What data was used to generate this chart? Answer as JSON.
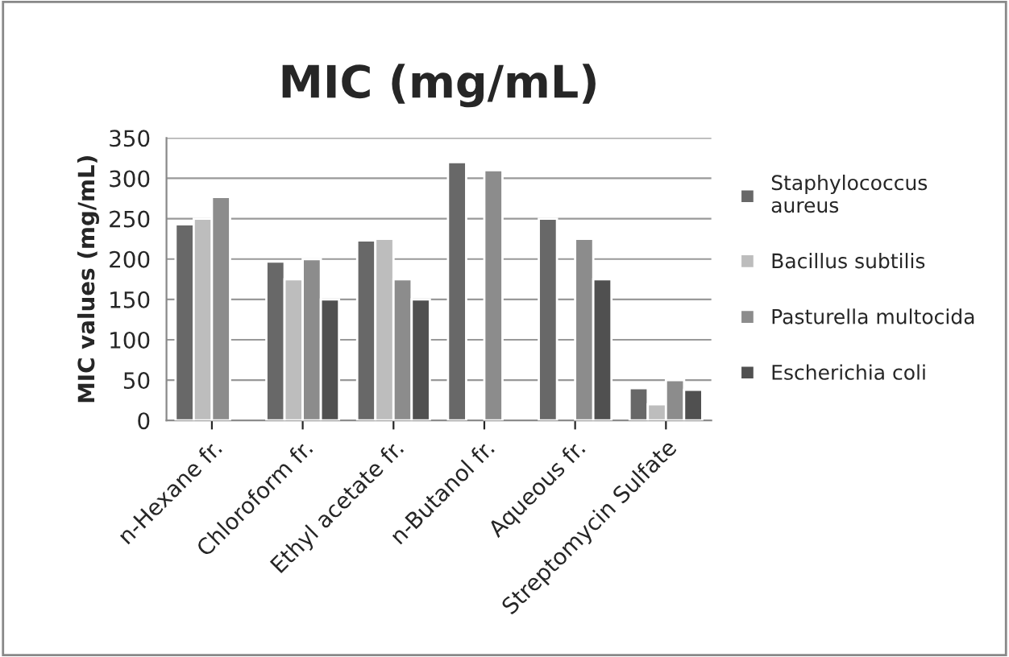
{
  "chart_data": {
    "type": "bar",
    "title": "MIC (mg/mL)",
    "ylabel": "MIC values (mg/mL)",
    "categories": [
      "n-Hexane fr.",
      "Chloroform fr.",
      "Ethyl acetate fr.",
      "n-Butanol fr.",
      "Aqueous fr.",
      "Streptomycin Sulfate"
    ],
    "series": [
      {
        "name": "Staphylococcus\naureus",
        "color": "#686868",
        "values": [
          243,
          197,
          223,
          320,
          250,
          40
        ]
      },
      {
        "name": "Bacillus subtilis",
        "color": "#bdbdbd",
        "values": [
          250,
          175,
          225,
          null,
          null,
          20
        ]
      },
      {
        "name": "Pasturella multocida",
        "color": "#8c8c8c",
        "values": [
          277,
          200,
          175,
          310,
          225,
          50
        ]
      },
      {
        "name": "Escherichia coli",
        "color": "#505050",
        "values": [
          null,
          150,
          150,
          null,
          175,
          38
        ]
      }
    ],
    "ylim": [
      0,
      350
    ],
    "yticks": [
      0,
      50,
      100,
      150,
      200,
      250,
      300,
      350
    ],
    "grid": "y",
    "legend": "right"
  }
}
